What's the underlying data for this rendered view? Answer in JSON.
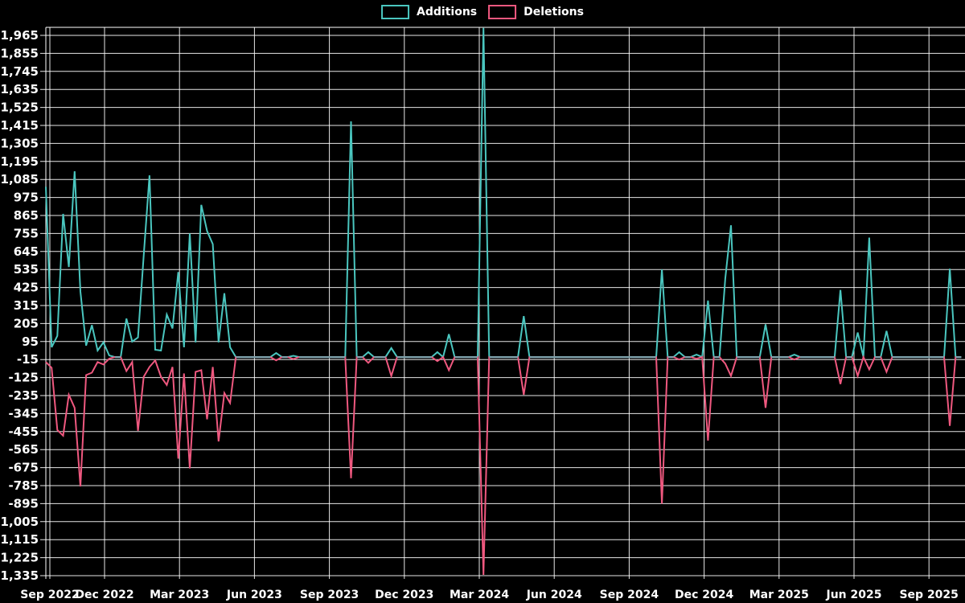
{
  "chart": {
    "background": "#000000",
    "legend": {
      "items": [
        {
          "label": "Additions",
          "color": "#4ac6bf"
        },
        {
          "label": "Deletions",
          "color": "#ef587f"
        }
      ]
    }
  },
  "chart_data": {
    "type": "line",
    "title": "",
    "xlabel": "",
    "ylabel": "",
    "grid": true,
    "legend_position": "top-center",
    "x_unit": "week",
    "x_tick_labels": [
      "Sep 2022",
      "Dec 2022",
      "Mar 2023",
      "Jun 2023",
      "Sep 2023",
      "Dec 2023",
      "Mar 2024",
      "Jun 2024",
      "Sep 2024",
      "Dec 2024",
      "Mar 2025",
      "Jun 2025",
      "Sep 2025"
    ],
    "y_ticks": [
      1965,
      1855,
      1745,
      1635,
      1525,
      1415,
      1305,
      1195,
      1085,
      975,
      865,
      755,
      645,
      535,
      425,
      315,
      205,
      95,
      -15,
      -125,
      -235,
      -345,
      -455,
      -565,
      -675,
      -785,
      -895,
      -1005,
      -1115,
      -1225,
      -1335
    ],
    "ylim": [
      -1390,
      2012
    ],
    "grid_color": "#ffffff",
    "axis_text_color": "#ffffff",
    "baseline_overlap_color": "#7da0aa",
    "series": [
      {
        "name": "Additions",
        "color": "#4ac6bf",
        "values": [
          1040,
          60,
          130,
          875,
          550,
          1135,
          400,
          70,
          195,
          40,
          90,
          10,
          0,
          0,
          235,
          95,
          120,
          620,
          1110,
          45,
          40,
          260,
          175,
          520,
          60,
          755,
          90,
          930,
          770,
          690,
          90,
          390,
          60,
          0,
          0,
          0,
          0,
          0,
          0,
          0,
          25,
          0,
          0,
          8,
          0,
          0,
          0,
          0,
          0,
          0,
          0,
          0,
          0,
          1440,
          0,
          0,
          30,
          0,
          0,
          0,
          55,
          0,
          0,
          0,
          0,
          0,
          0,
          0,
          30,
          0,
          140,
          0,
          0,
          0,
          0,
          0,
          2010,
          0,
          0,
          0,
          0,
          0,
          0,
          250,
          0,
          0,
          0,
          0,
          0,
          0,
          0,
          0,
          0,
          0,
          0,
          0,
          0,
          0,
          0,
          0,
          0,
          0,
          0,
          0,
          0,
          0,
          0,
          535,
          0,
          0,
          30,
          0,
          0,
          15,
          0,
          345,
          0,
          0,
          480,
          805,
          0,
          0,
          0,
          0,
          0,
          200,
          0,
          0,
          0,
          0,
          15,
          0,
          0,
          0,
          0,
          0,
          0,
          0,
          410,
          0,
          0,
          150,
          0,
          730,
          0,
          0,
          160,
          0,
          0,
          0,
          0,
          0,
          0,
          0,
          0,
          0,
          0,
          540,
          0,
          0
        ]
      },
      {
        "name": "Deletions",
        "color": "#ef587f",
        "values": [
          -30,
          -65,
          -445,
          -480,
          -230,
          -310,
          -790,
          -110,
          -95,
          -30,
          -45,
          -10,
          0,
          0,
          -85,
          -30,
          -450,
          -120,
          -60,
          -20,
          -120,
          -170,
          -60,
          -620,
          -100,
          -680,
          -90,
          -80,
          -380,
          -60,
          -515,
          -220,
          -280,
          0,
          0,
          0,
          0,
          0,
          0,
          0,
          -20,
          0,
          0,
          -12,
          0,
          0,
          0,
          0,
          0,
          0,
          0,
          0,
          0,
          -740,
          0,
          0,
          -35,
          0,
          0,
          0,
          -115,
          0,
          0,
          0,
          0,
          0,
          0,
          0,
          -25,
          0,
          -80,
          0,
          0,
          0,
          0,
          0,
          -1330,
          0,
          0,
          0,
          0,
          0,
          0,
          -230,
          0,
          0,
          0,
          0,
          0,
          0,
          0,
          0,
          0,
          0,
          0,
          0,
          0,
          0,
          0,
          0,
          0,
          0,
          0,
          0,
          0,
          0,
          0,
          -895,
          0,
          0,
          -15,
          0,
          0,
          -10,
          0,
          -510,
          0,
          0,
          -40,
          -115,
          0,
          0,
          0,
          0,
          0,
          -310,
          0,
          0,
          0,
          0,
          -15,
          0,
          0,
          0,
          0,
          0,
          0,
          0,
          -165,
          0,
          0,
          -115,
          0,
          -75,
          0,
          0,
          -90,
          0,
          0,
          0,
          0,
          0,
          0,
          0,
          0,
          0,
          0,
          -420,
          0,
          0
        ]
      }
    ]
  }
}
